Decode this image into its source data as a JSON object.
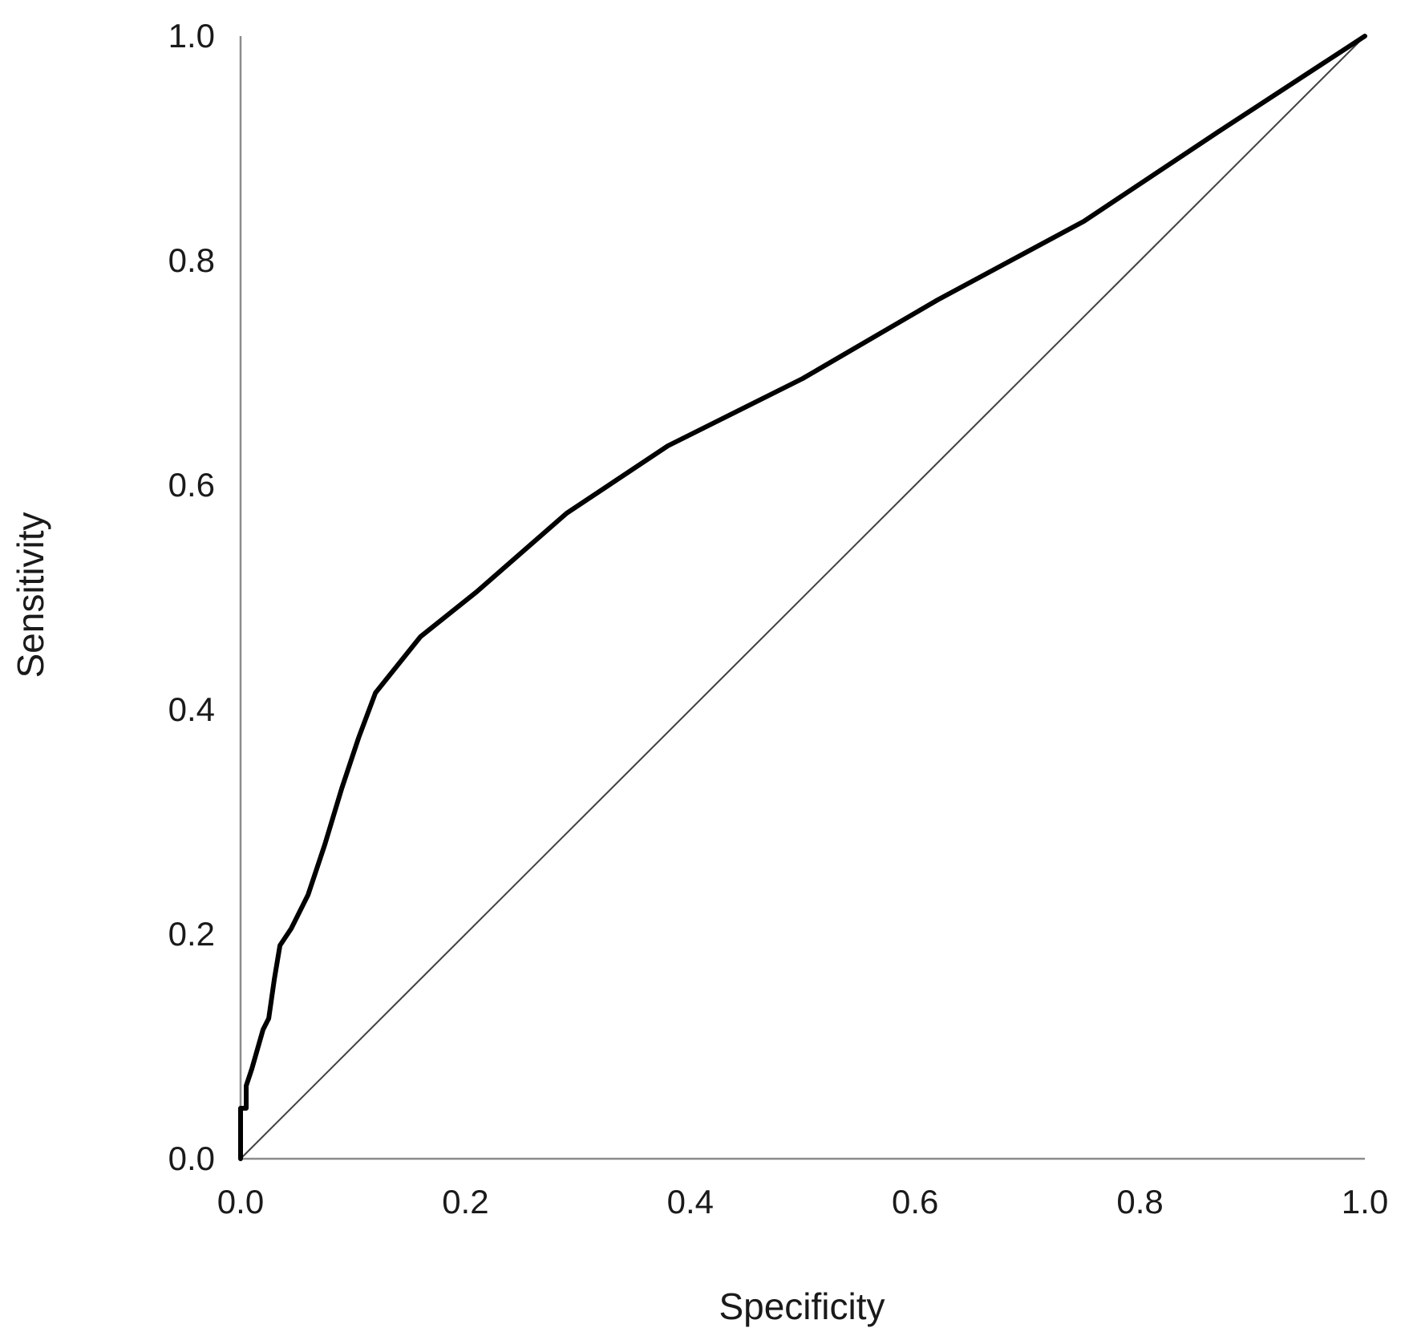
{
  "chart_data": {
    "type": "line",
    "xlabel": "Specificity",
    "ylabel": "Sensitivity",
    "xlim": [
      0,
      1
    ],
    "ylim": [
      0,
      1
    ],
    "x_ticks": [
      "0.0",
      "0.2",
      "0.4",
      "0.6",
      "0.8",
      "1.0"
    ],
    "y_ticks": [
      "0.0",
      "0.2",
      "0.4",
      "0.6",
      "0.8",
      "1.0"
    ],
    "grid": false,
    "legend": "none",
    "series": [
      {
        "role": "roc-curve",
        "color": "#000000",
        "x": [
          0.0,
          0.0,
          0.005,
          0.005,
          0.01,
          0.02,
          0.025,
          0.03,
          0.035,
          0.045,
          0.06,
          0.075,
          0.09,
          0.105,
          0.12,
          0.16,
          0.21,
          0.29,
          0.38,
          0.5,
          0.62,
          0.75,
          0.87,
          1.0
        ],
        "y": [
          0.0,
          0.045,
          0.045,
          0.065,
          0.08,
          0.115,
          0.125,
          0.16,
          0.19,
          0.205,
          0.235,
          0.28,
          0.33,
          0.375,
          0.415,
          0.465,
          0.505,
          0.575,
          0.635,
          0.695,
          0.765,
          0.835,
          0.915,
          1.0
        ]
      },
      {
        "role": "reference-diagonal",
        "color": "#404040",
        "x": [
          0,
          1
        ],
        "y": [
          0,
          1
        ]
      }
    ]
  }
}
